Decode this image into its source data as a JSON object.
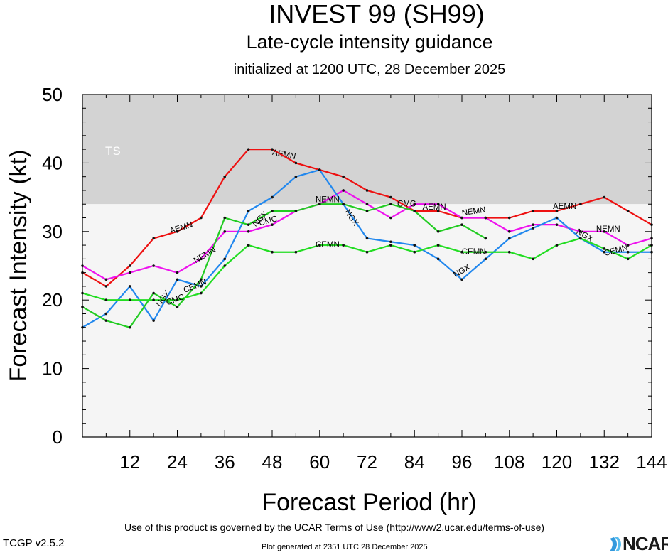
{
  "header": {
    "title": "INVEST 99 (SH99)",
    "subtitle": "Late-cycle intensity guidance",
    "initialized": "initialized at 1200 UTC, 28 December 2025"
  },
  "footer": {
    "terms": "Use of this product is governed by the UCAR Terms of Use (http://www2.ucar.edu/terms-of-use)",
    "version": "TCGP v2.5.2",
    "generated": "Plot generated at 2351 UTC   28 December 2025",
    "logo": "NCAR"
  },
  "chart_data": {
    "type": "line",
    "title": "INVEST 99 (SH99)",
    "xlabel": "Forecast Period (hr)",
    "ylabel": "Forecast Intensity (kt)",
    "xlim": [
      0,
      144
    ],
    "ylim": [
      0,
      50
    ],
    "xticks": [
      12,
      24,
      36,
      48,
      60,
      72,
      84,
      96,
      108,
      120,
      132,
      144
    ],
    "yticks": [
      0,
      10,
      20,
      30,
      40,
      50
    ],
    "grid": false,
    "bands": [
      {
        "label": "TS",
        "from": 34,
        "to": 50,
        "color": "#d3d3d3"
      },
      {
        "label": "",
        "from": 0,
        "to": 34,
        "color": "#f5f5f5"
      }
    ],
    "series": [
      {
        "name": "AEMN",
        "color": "#ee1111",
        "x": [
          0,
          6,
          12,
          18,
          24,
          30,
          36,
          42,
          48,
          54,
          60,
          66,
          72,
          78,
          84,
          90,
          96,
          102,
          108,
          114,
          120,
          126,
          132,
          138,
          144
        ],
        "values": [
          24,
          22,
          25,
          29,
          30,
          32,
          38,
          42,
          42,
          40,
          39,
          38,
          36,
          35,
          33,
          33,
          32,
          32,
          32,
          33,
          33,
          34,
          35,
          33,
          31
        ],
        "labels": [
          {
            "x": 25,
            "y": 30.5,
            "angle": -17
          },
          {
            "x": 51,
            "y": 41.2,
            "angle": 11
          },
          {
            "x": 89,
            "y": 33.5,
            "angle": 0
          },
          {
            "x": 122,
            "y": 33.6,
            "angle": 0
          }
        ]
      },
      {
        "name": "NEMN",
        "color": "#ee11ee",
        "x": [
          0,
          6,
          12,
          18,
          24,
          30,
          36,
          42,
          48,
          54,
          60,
          66,
          72,
          78,
          84,
          90,
          96,
          102,
          108,
          114,
          120,
          126,
          132,
          138,
          144
        ],
        "values": [
          25,
          23,
          24,
          25,
          24,
          26,
          30,
          30,
          31,
          33,
          34,
          36,
          34,
          32,
          34,
          34,
          32,
          32,
          30,
          31,
          31,
          30,
          30,
          28,
          29
        ],
        "labels": [
          {
            "x": 31,
            "y": 26.5,
            "angle": -30
          },
          {
            "x": 62,
            "y": 34.6,
            "angle": 0
          },
          {
            "x": 99,
            "y": 32.9,
            "angle": -8
          },
          {
            "x": 133,
            "y": 30.3,
            "angle": 0
          }
        ]
      },
      {
        "name": "NGX",
        "color": "#2288ee",
        "x": [
          0,
          6,
          12,
          18,
          24,
          30,
          36,
          42,
          48,
          54,
          60,
          66,
          72,
          78,
          84,
          90,
          96,
          102,
          108,
          114,
          120,
          126,
          132,
          138,
          144
        ],
        "values": [
          16,
          18,
          22,
          17,
          23,
          22,
          26,
          33,
          35,
          38,
          39,
          34,
          29,
          28.5,
          28,
          26,
          23,
          26,
          29,
          30.5,
          32,
          29,
          27,
          27,
          27
        ],
        "labels": [
          {
            "x": 20.5,
            "y": 20.2,
            "angle": -55
          },
          {
            "x": 45,
            "y": 31.8,
            "angle": -45
          },
          {
            "x": 68,
            "y": 32,
            "angle": 55
          },
          {
            "x": 96,
            "y": 24.2,
            "angle": -30
          },
          {
            "x": 127,
            "y": 29.4,
            "angle": 30
          }
        ]
      },
      {
        "name": "CMC",
        "color": "#22cc22",
        "x": [
          0,
          6,
          12,
          18,
          24,
          30,
          36,
          42,
          48,
          54,
          60,
          66,
          72,
          78,
          84,
          90,
          96,
          102
        ],
        "values": [
          19,
          17,
          16,
          21,
          19,
          23,
          32,
          31,
          33,
          33,
          34,
          34,
          33,
          34,
          33,
          30,
          31,
          29
        ],
        "labels": [
          {
            "x": 23.5,
            "y": 20,
            "angle": -20
          },
          {
            "x": 47,
            "y": 31.5,
            "angle": -15
          },
          {
            "x": 82,
            "y": 34,
            "angle": 0
          }
        ]
      },
      {
        "name": "CEMN",
        "color": "#22dd22",
        "x": [
          0,
          6,
          12,
          18,
          24,
          30,
          36,
          42,
          48,
          54,
          60,
          66,
          72,
          78,
          84,
          90,
          96,
          102,
          108,
          114,
          120,
          126,
          132,
          138,
          144
        ],
        "values": [
          21,
          20,
          20,
          20,
          20,
          21,
          25,
          28,
          27,
          27,
          28,
          28,
          27,
          28,
          27,
          28,
          27,
          27,
          27,
          26,
          28,
          29,
          27.5,
          26,
          28
        ],
        "labels": [
          {
            "x": 28.5,
            "y": 22,
            "angle": -22
          },
          {
            "x": 62,
            "y": 28,
            "angle": 0
          },
          {
            "x": 99,
            "y": 27,
            "angle": 0
          },
          {
            "x": 135,
            "y": 27.2,
            "angle": -15
          }
        ]
      }
    ]
  }
}
